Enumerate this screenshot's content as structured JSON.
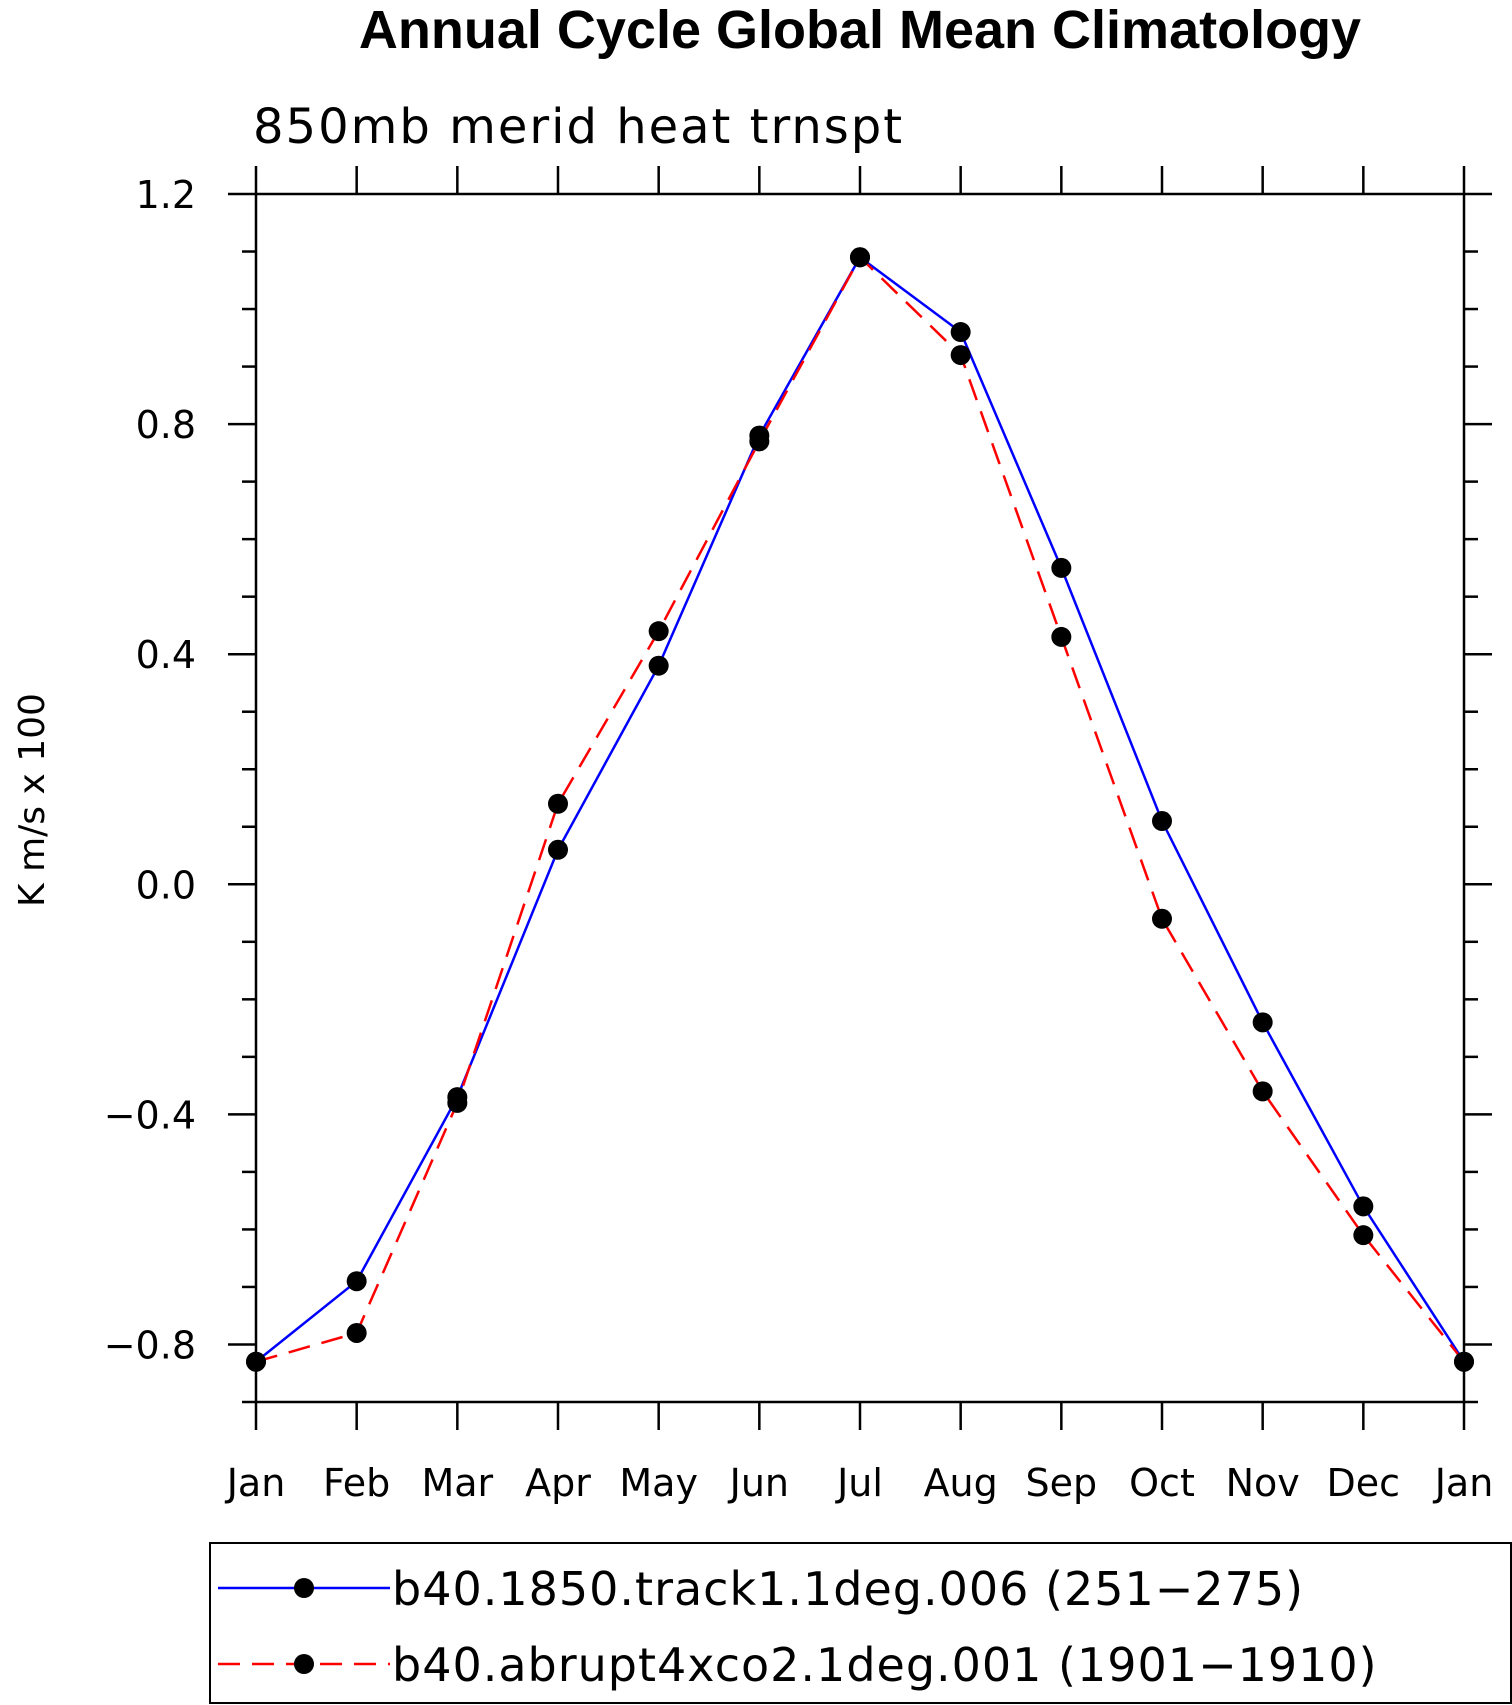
{
  "chart_data": {
    "type": "line",
    "title": "Annual Cycle Global Mean Climatology",
    "subtitle": "850mb merid heat trnspt",
    "ylabel": "K m/s x 100",
    "xlabel": "",
    "categories": [
      "Jan",
      "Feb",
      "Mar",
      "Apr",
      "May",
      "Jun",
      "Jul",
      "Aug",
      "Sep",
      "Oct",
      "Nov",
      "Dec",
      "Jan"
    ],
    "ylim": [
      -0.9,
      1.2
    ],
    "yticks": [
      1.2,
      0.8,
      0.4,
      0.0,
      -0.4,
      -0.8
    ],
    "ytick_labels": [
      "1.2",
      "0.8",
      "0.4",
      "0.0",
      "−0.4",
      "−0.8"
    ],
    "series": [
      {
        "name": "b40.1850.track1.1deg.006 (251−275)",
        "color": "#0000ff",
        "dash": "solid",
        "values": [
          -0.83,
          -0.69,
          -0.37,
          0.06,
          0.38,
          0.78,
          1.09,
          0.96,
          0.55,
          0.11,
          -0.24,
          -0.56,
          -0.83
        ]
      },
      {
        "name": "b40.abrupt4xco2.1deg.001 (1901−1910)",
        "color": "#ff0000",
        "dash": "dashed",
        "values": [
          -0.83,
          -0.78,
          -0.38,
          0.14,
          0.44,
          0.77,
          1.09,
          0.92,
          0.43,
          -0.06,
          -0.36,
          -0.61,
          -0.83
        ]
      }
    ],
    "legend_position": "bottom"
  }
}
